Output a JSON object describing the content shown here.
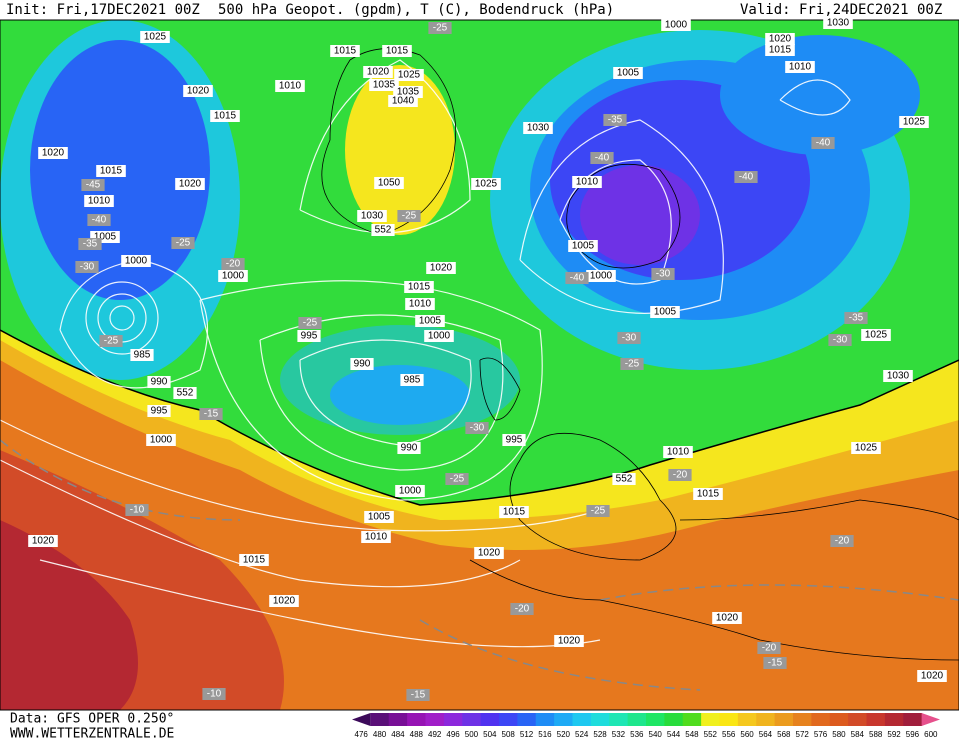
{
  "header": {
    "init": "Init: Fri,17DEC2021 00Z",
    "title": "500 hPa Geopot. (gpdm), T (C), Bodendruck (hPa)",
    "valid": "Valid: Fri,24DEC2021 00Z"
  },
  "footer": {
    "data": "Data: GFS OPER 0.250°",
    "site": "WWW.WETTERZENTRALE.DE"
  },
  "colorbar": {
    "labels": [
      476,
      480,
      484,
      488,
      492,
      496,
      500,
      504,
      508,
      512,
      516,
      520,
      524,
      528,
      532,
      536,
      540,
      544,
      548,
      552,
      556,
      560,
      564,
      568,
      572,
      576,
      580,
      584,
      588,
      592,
      596,
      600
    ],
    "colors": [
      "#3c0a5a",
      "#5a0f78",
      "#780f96",
      "#9614b4",
      "#a01ec8",
      "#8c28dc",
      "#6e32e6",
      "#5032f0",
      "#3c46f5",
      "#2864f5",
      "#1e8cf5",
      "#1eaaf5",
      "#1ec8f0",
      "#1edcdc",
      "#1ee6b4",
      "#1ee68c",
      "#1ee664",
      "#28dc3c",
      "#50dc1e",
      "#f0f01e",
      "#fae614",
      "#f5c81e",
      "#f0b41e",
      "#eb9b1e",
      "#e6821e",
      "#e1691e",
      "#dc5a1e",
      "#d24b28",
      "#c8372d",
      "#b42832",
      "#a01e3c",
      "#e6508c"
    ]
  },
  "map": {
    "pressure_labels": [
      1025,
      1015,
      1015,
      1000,
      1030,
      1020,
      1015,
      1010,
      1020,
      1025,
      1035,
      1035,
      1040,
      1005,
      1010,
      1020,
      1015,
      1030,
      1025,
      1020,
      1015,
      1020,
      1050,
      1025,
      1010,
      1010,
      1030,
      552,
      1005,
      1005,
      1000,
      1000,
      1000,
      1020,
      1015,
      1010,
      1005,
      1000,
      995,
      1005,
      1025,
      985,
      990,
      985,
      1030,
      990,
      552,
      995,
      1000,
      995,
      990,
      1025,
      1010,
      552,
      1000,
      1015,
      1015,
      1005,
      1010,
      1020,
      1020,
      1015,
      1020,
      1020,
      1020,
      1020
    ],
    "temperature_labels": [
      -25,
      -35,
      -40,
      -40,
      -40,
      -45,
      -40,
      -35,
      -25,
      -30,
      -20,
      -25,
      -40,
      -30,
      -35,
      -30,
      -30,
      -25,
      -25,
      -25,
      -15,
      -30,
      -25,
      -20,
      -25,
      -10,
      -20,
      -20,
      -20,
      -15,
      -10,
      -15
    ]
  }
}
